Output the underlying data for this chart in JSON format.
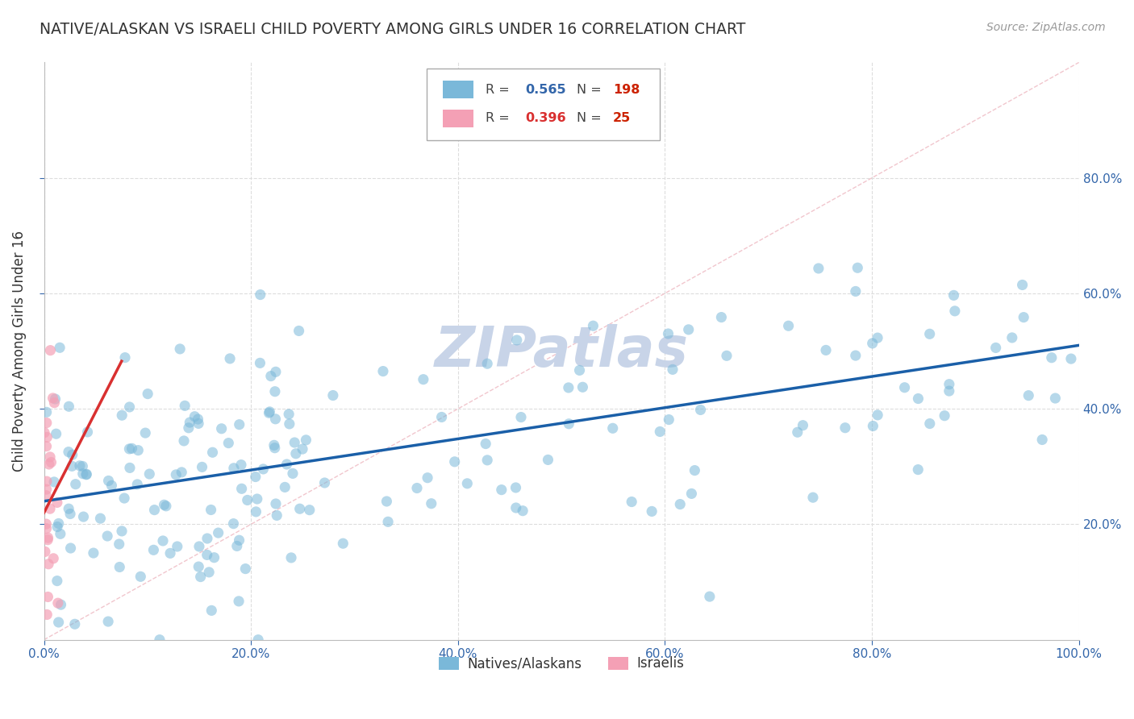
{
  "title": "NATIVE/ALASKAN VS ISRAELI CHILD POVERTY AMONG GIRLS UNDER 16 CORRELATION CHART",
  "source": "Source: ZipAtlas.com",
  "ylabel": "Child Poverty Among Girls Under 16",
  "xlim": [
    0,
    1.0
  ],
  "ylim": [
    0,
    1.0
  ],
  "blue_R": 0.565,
  "blue_N": 198,
  "pink_R": 0.396,
  "pink_N": 25,
  "blue_color": "#7ab8d9",
  "pink_color": "#f4a0b5",
  "blue_line_color": "#1a5fa8",
  "pink_line_color": "#d93030",
  "diag_color": "#cccccc",
  "diag_pink": "#f0c0c8",
  "background_color": "#ffffff",
  "grid_color": "#dddddd",
  "watermark": "ZIPatlas",
  "watermark_color": "#c8d4e8",
  "title_color": "#333333",
  "axis_label_color": "#333333",
  "tick_color": "#3366aa",
  "source_color": "#999999",
  "legend_R_color": "#3366aa",
  "legend_N_color": "#cc2200",
  "blue_legend_label": "Natives/Alaskans",
  "pink_legend_label": "Israelis",
  "blue_line_intercept": 0.24,
  "blue_line_slope": 0.27,
  "pink_line_intercept": 0.22,
  "pink_line_slope": 3.5,
  "pink_line_xmax": 0.075
}
